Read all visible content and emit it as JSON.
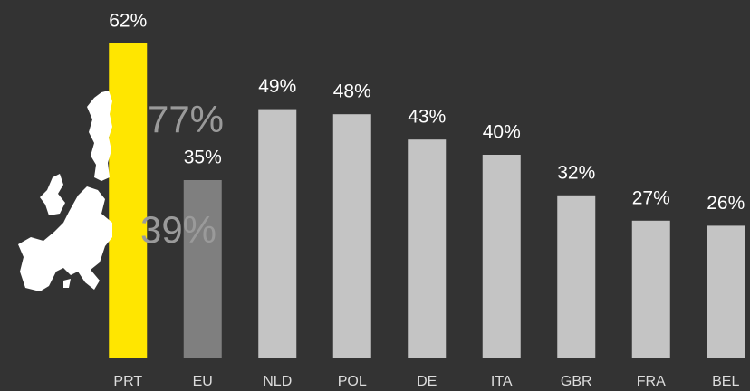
{
  "chart_data": {
    "type": "bar",
    "categories": [
      "PRT",
      "EU",
      "NLD",
      "POL",
      "DE",
      "ITA",
      "GBR",
      "FRA",
      "BEL"
    ],
    "values": [
      62,
      35,
      49,
      48,
      43,
      40,
      32,
      27,
      26
    ],
    "value_labels": [
      "62%",
      "35%",
      "49%",
      "48%",
      "43%",
      "40%",
      "32%",
      "27%",
      "26%"
    ],
    "colors": [
      "#ffe600",
      "#7f7f7f",
      "#c4c4c4",
      "#c4c4c4",
      "#c4c4c4",
      "#c4c4c4",
      "#c4c4c4",
      "#c4c4c4",
      "#c4c4c4"
    ],
    "ylim": [
      0,
      70
    ],
    "annotations": [
      "77%",
      "39%"
    ]
  }
}
